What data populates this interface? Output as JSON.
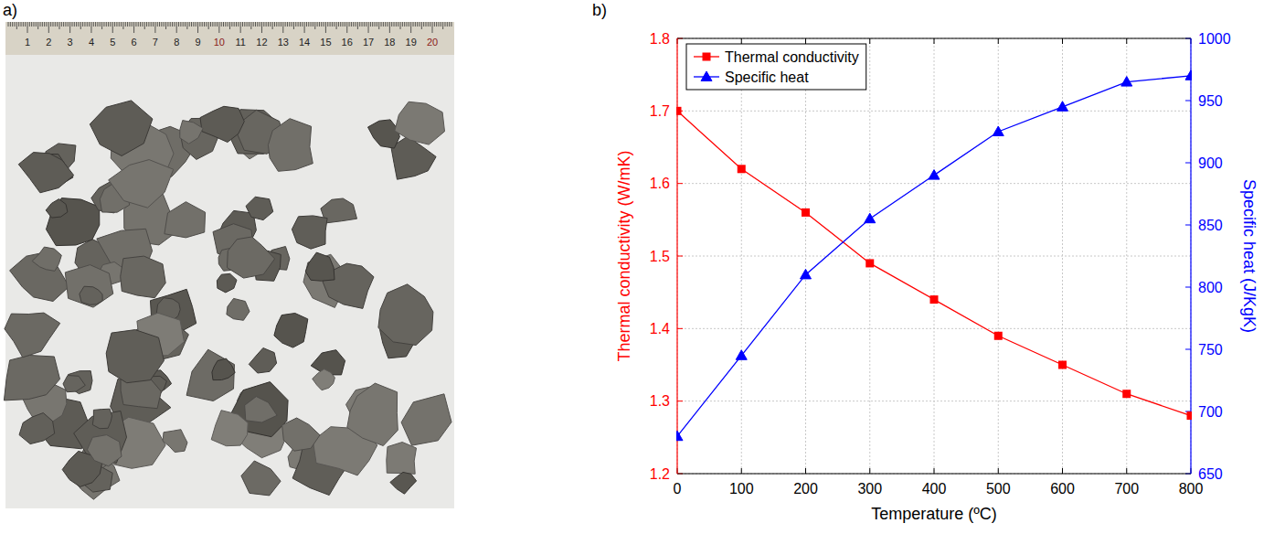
{
  "photo": {
    "label": "a)",
    "ruler_labels": [
      1,
      2,
      3,
      4,
      5,
      6,
      7,
      8,
      9,
      10,
      11,
      12,
      13,
      14,
      15,
      16,
      17,
      18,
      19,
      20
    ]
  },
  "chart_data": {
    "type": "line",
    "label": "b)",
    "x_label": "Temperature (ºC)",
    "y_label": "Thermal conductivity (W/mK)",
    "y2_label": "Specific heat (J/KgK)",
    "x": [
      0,
      100,
      200,
      300,
      400,
      500,
      600,
      700,
      800
    ],
    "xlim": [
      0,
      800
    ],
    "xticks": [
      0,
      100,
      200,
      300,
      400,
      500,
      600,
      700,
      800
    ],
    "ylim": [
      1.2,
      1.8
    ],
    "yticks": [
      1.2,
      1.3,
      1.4,
      1.5,
      1.6,
      1.7,
      1.8
    ],
    "y2lim": [
      650,
      1000
    ],
    "y2ticks": [
      650,
      700,
      750,
      800,
      850,
      900,
      950,
      1000
    ],
    "grid": true,
    "legend": "upper-left",
    "series": [
      {
        "name": "Thermal conductivity",
        "color": "#ff0000",
        "marker": "square",
        "line_style": "solid",
        "values": [
          1.7,
          1.62,
          1.56,
          1.49,
          1.44,
          1.39,
          1.35,
          1.31,
          1.28
        ]
      },
      {
        "name": "Specific heat",
        "color": "#0000ff",
        "marker": "triangle",
        "line_style": "solid",
        "axis": "y2",
        "values": [
          680,
          745,
          810,
          855,
          890,
          925,
          945,
          965,
          970
        ]
      }
    ]
  }
}
